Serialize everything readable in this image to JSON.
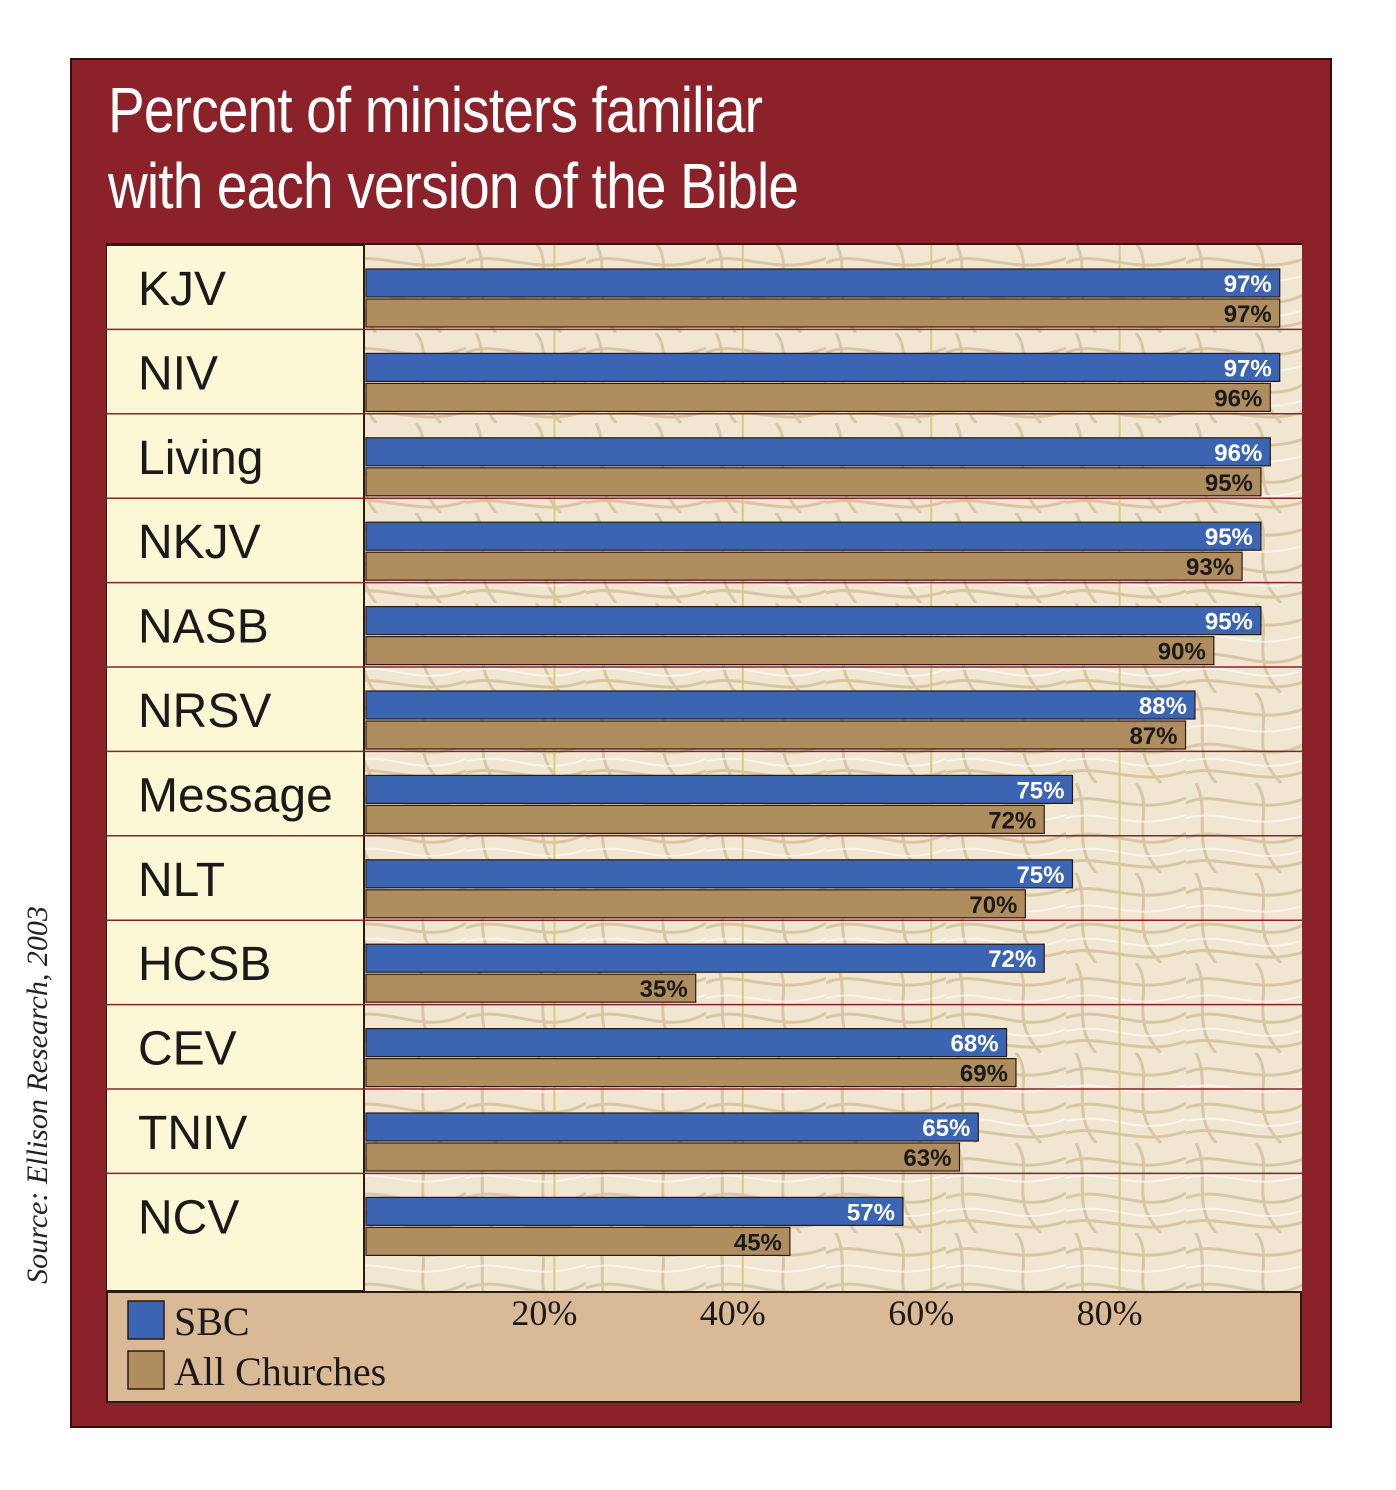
{
  "chart_data": {
    "type": "bar",
    "orientation": "horizontal",
    "title": "Percent of ministers familiar\nwith each version of the Bible",
    "source": "Source: Ellison Research, 2003",
    "categories": [
      "KJV",
      "NIV",
      "Living",
      "NKJV",
      "NASB",
      "NRSV",
      "Message",
      "NLT",
      "HCSB",
      "CEV",
      "TNIV",
      "NCV"
    ],
    "series": [
      {
        "name": "SBC",
        "values": [
          97,
          97,
          96,
          95,
          95,
          88,
          75,
          75,
          72,
          68,
          65,
          57
        ]
      },
      {
        "name": "All Churches",
        "values": [
          97,
          96,
          95,
          93,
          90,
          87,
          72,
          70,
          35,
          69,
          63,
          45
        ]
      }
    ],
    "data_labels": [
      [
        "97%",
        "97%",
        "96%",
        "95%",
        "95%",
        "88%",
        "75%",
        "75%",
        "72%",
        "68%",
        "65%",
        "57%"
      ],
      [
        "97%",
        "96%",
        "95%",
        "93%",
        "90%",
        "87%",
        "72%",
        "70%",
        "35%",
        "69%",
        "63%",
        "45%"
      ]
    ],
    "xticks": [
      20,
      40,
      60,
      80
    ],
    "xtick_labels": [
      "20%",
      "40%",
      "60%",
      "80%"
    ],
    "xlim": [
      0,
      100
    ],
    "xlabel": "",
    "ylabel": "",
    "grid": true,
    "legend_position": "bottom-left",
    "colors": {
      "sbc": "#3b64b2",
      "all_churches": "#b08d5e",
      "frame": "#8b2229",
      "label_column": "#fcf7d4",
      "plot_background": "#f0e6d2",
      "legend_panel": "#dab996"
    }
  }
}
